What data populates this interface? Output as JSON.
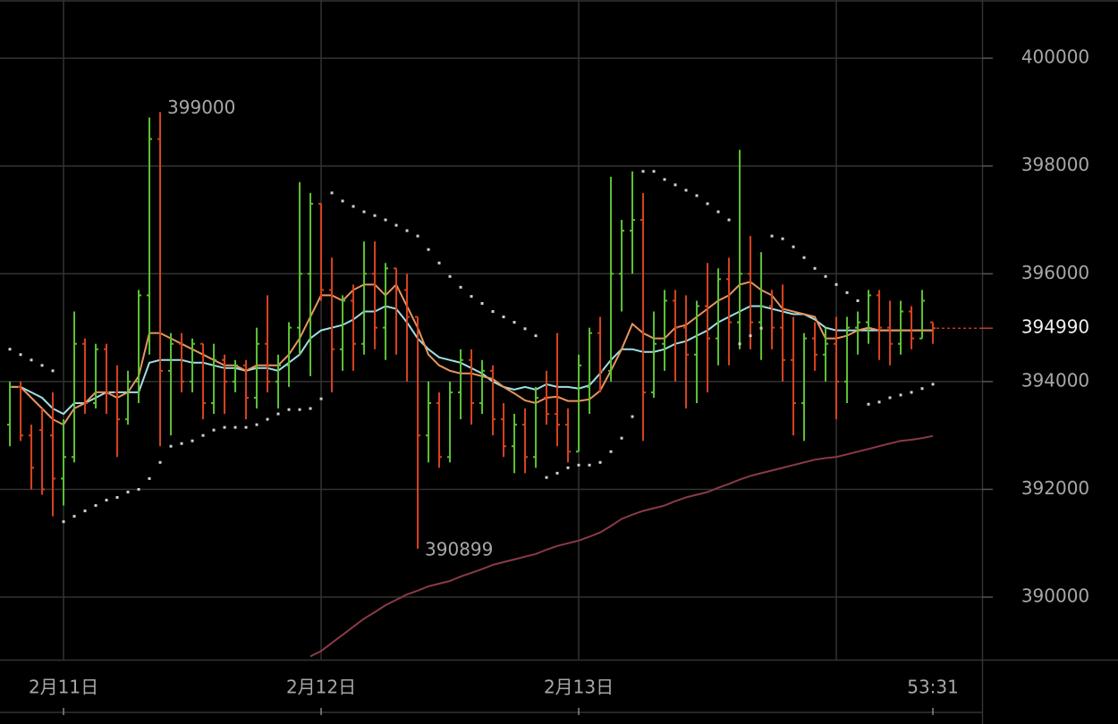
{
  "chart_data": {
    "type": "ohlc",
    "up_color": "#5ec234",
    "down_color": "#d8431f",
    "x": [
      -5,
      -4,
      -3,
      -2,
      -1,
      0,
      1,
      2,
      3,
      4,
      5,
      6,
      7,
      8,
      9,
      10,
      11,
      12,
      13,
      14,
      15,
      16,
      17,
      18,
      19,
      20,
      21,
      22,
      23,
      24,
      25,
      26,
      27,
      28,
      29,
      30,
      31,
      32,
      33,
      34,
      35,
      36,
      37,
      38,
      39,
      40,
      41,
      42,
      43,
      44,
      45,
      46,
      47,
      48,
      49,
      50,
      51,
      52,
      53,
      54,
      55,
      56,
      57,
      58,
      59,
      60,
      61,
      62,
      63,
      64,
      65,
      66,
      67,
      68,
      69,
      70,
      71,
      72,
      73,
      74,
      75,
      76,
      77,
      78,
      79,
      80,
      81
    ],
    "open": [
      393200,
      393900,
      393000,
      393100,
      393000,
      392200,
      392600,
      394700,
      393600,
      394600,
      393800,
      393300,
      394000,
      395600,
      398500,
      394200,
      394700,
      394000,
      394700,
      393600,
      394400,
      394000,
      394300,
      393700,
      394700,
      394000,
      394300,
      395000,
      396000,
      397300,
      395700,
      394600,
      395500,
      394700,
      396000,
      395000,
      396100,
      395700,
      395200,
      393000,
      393600,
      392600,
      393800,
      394400,
      393600,
      394200,
      393300,
      392800,
      393200,
      392600,
      393700,
      393400,
      393200,
      392700,
      393900,
      394900,
      394200,
      396000,
      396800,
      397000,
      393800,
      394700,
      395500,
      395000,
      394500,
      395400,
      394800,
      395900,
      395100,
      396000,
      395100,
      395400,
      395000,
      394400,
      393600,
      394800,
      394500,
      394700,
      394000,
      395000,
      395100,
      395600,
      395000,
      394700,
      395300,
      394800,
      395100
    ],
    "high": [
      394000,
      394000,
      393200,
      393500,
      393800,
      393300,
      395300,
      394800,
      394700,
      394700,
      394300,
      394200,
      395700,
      398900,
      399000,
      394900,
      394900,
      394800,
      394700,
      394700,
      394500,
      394400,
      394400,
      395000,
      395600,
      394500,
      395100,
      397700,
      397500,
      397300,
      396300,
      395600,
      395800,
      396600,
      396600,
      396200,
      396100,
      396000,
      395200,
      394000,
      393800,
      394000,
      394600,
      394600,
      394400,
      394300,
      393600,
      393400,
      393500,
      393900,
      394200,
      394900,
      393500,
      394500,
      395000,
      395200,
      397800,
      397000,
      397900,
      397500,
      395300,
      395700,
      395700,
      395600,
      395500,
      396200,
      396100,
      396300,
      398300,
      396700,
      396400,
      395700,
      395800,
      395200,
      394900,
      395100,
      395000,
      395200,
      395200,
      395300,
      395700,
      395700,
      395500,
      395500,
      395400,
      395700,
      395100
    ],
    "low": [
      392800,
      392900,
      392000,
      391900,
      391500,
      391700,
      392500,
      393400,
      393500,
      393400,
      392600,
      393200,
      393600,
      394500,
      392800,
      393000,
      393800,
      393800,
      393300,
      393400,
      393400,
      393800,
      393300,
      393500,
      393800,
      393500,
      393900,
      394500,
      394100,
      395500,
      393800,
      394200,
      394200,
      394500,
      394600,
      394400,
      394500,
      394000,
      390899,
      392500,
      392400,
      392500,
      393300,
      393200,
      393400,
      393000,
      392600,
      392300,
      392300,
      392400,
      393200,
      392800,
      392500,
      392700,
      393400,
      393800,
      394000,
      395300,
      396000,
      392900,
      393700,
      394200,
      394000,
      393500,
      393600,
      393800,
      394300,
      394300,
      394600,
      394600,
      394400,
      394600,
      394000,
      393000,
      392900,
      394200,
      394000,
      393300,
      393600,
      394500,
      394700,
      394400,
      394300,
      394500,
      394600,
      394800,
      394700
    ],
    "close": [
      393900,
      393000,
      392400,
      392000,
      392200,
      392600,
      394700,
      393600,
      394600,
      393800,
      393300,
      394000,
      395600,
      398500,
      394200,
      394700,
      394000,
      394700,
      393600,
      394400,
      394000,
      394300,
      393700,
      394700,
      394000,
      394300,
      395000,
      396000,
      397300,
      395700,
      394600,
      395500,
      394700,
      396000,
      395000,
      396100,
      395700,
      395200,
      393000,
      393600,
      392600,
      393800,
      394400,
      393600,
      394200,
      393300,
      392800,
      393200,
      392600,
      393700,
      393400,
      393200,
      392700,
      394300,
      394900,
      394200,
      396000,
      396800,
      397000,
      393800,
      394700,
      395500,
      395000,
      394500,
      395400,
      394800,
      395900,
      395100,
      396000,
      395100,
      395400,
      395000,
      394400,
      393600,
      394800,
      394500,
      394700,
      394000,
      395000,
      395100,
      395600,
      395000,
      394700,
      395300,
      394800,
      395500,
      394990
    ],
    "lines": [
      {
        "color": "#8b3a48",
        "values": [
          null,
          null,
          null,
          null,
          null,
          null,
          null,
          null,
          null,
          null,
          null,
          null,
          null,
          null,
          null,
          null,
          null,
          null,
          null,
          null,
          null,
          null,
          null,
          null,
          null,
          null,
          null,
          null,
          388900,
          389000,
          389150,
          389300,
          389450,
          389600,
          389720,
          389850,
          389950,
          390050,
          390120,
          390200,
          390250,
          390300,
          390380,
          390450,
          390520,
          390600,
          390650,
          390700,
          390750,
          390800,
          390880,
          390950,
          391000,
          391050,
          391120,
          391200,
          391320,
          391450,
          391530,
          391600,
          391650,
          391700,
          391780,
          391850,
          391900,
          391950,
          392030,
          392100,
          392180,
          392250,
          392300,
          392350,
          392400,
          392450,
          392500,
          392550,
          392580,
          392600,
          392650,
          392700,
          392750,
          392800,
          392850,
          392900,
          392920,
          392950,
          392990
        ]
      },
      {
        "color": "#9fdfe6",
        "values": [
          393900,
          393900,
          393800,
          393700,
          393500,
          393400,
          393600,
          393600,
          393700,
          393800,
          393800,
          393800,
          393800,
          394350,
          394400,
          394400,
          394400,
          394350,
          394350,
          394300,
          394250,
          394250,
          394200,
          394250,
          394250,
          394200,
          394350,
          394500,
          394800,
          394950,
          395000,
          395050,
          395150,
          395300,
          395300,
          395400,
          395350,
          395100,
          394800,
          394600,
          394450,
          394400,
          394350,
          394250,
          394150,
          394000,
          393900,
          393850,
          393900,
          393850,
          393950,
          393900,
          393900,
          393870,
          393930,
          394150,
          394400,
          394600,
          394600,
          394550,
          394550,
          394600,
          394700,
          394750,
          394850,
          394950,
          395100,
          395200,
          395300,
          395400,
          395400,
          395350,
          395300,
          395250,
          395250,
          395150,
          395000,
          394950,
          394950,
          394950,
          394950,
          394950,
          394950,
          394950,
          394950,
          394950,
          394950
        ]
      },
      {
        "color": "#e8955c",
        "values": [
          393900,
          393900,
          393700,
          393500,
          393300,
          393200,
          393500,
          393600,
          393800,
          393800,
          393700,
          393800,
          394100,
          394900,
          394900,
          394800,
          394700,
          394600,
          394500,
          394400,
          394300,
          394300,
          394200,
          394300,
          394300,
          394300,
          394500,
          394800,
          395200,
          395600,
          395600,
          395500,
          395700,
          395800,
          395800,
          395600,
          395800,
          395400,
          395000,
          394500,
          394300,
          394200,
          394150,
          394150,
          394100,
          394050,
          393900,
          393780,
          393650,
          393600,
          393700,
          393720,
          393640,
          393640,
          393670,
          393830,
          394200,
          394600,
          395070,
          394900,
          394800,
          394800,
          395000,
          395050,
          395200,
          395350,
          395500,
          395600,
          395800,
          395850,
          395700,
          395600,
          395350,
          395300,
          395250,
          395200,
          394800,
          394800,
          394850,
          394950,
          395000,
          394950,
          394950,
          394950,
          394950,
          394950,
          394950
        ]
      }
    ],
    "sar": {
      "color": "#d0d0d0",
      "values": [
        394600,
        394500,
        394400,
        394300,
        394200,
        391400,
        391500,
        391600,
        391700,
        391800,
        391850,
        391950,
        392000,
        392200,
        392500,
        392800,
        392850,
        392900,
        393000,
        393100,
        393150,
        393150,
        393150,
        393200,
        393300,
        393400,
        393480,
        393480,
        393500,
        393680,
        397500,
        397350,
        397250,
        397150,
        397080,
        397000,
        396900,
        396800,
        396700,
        396450,
        396200,
        395950,
        395750,
        395580,
        395450,
        395300,
        395200,
        395100,
        394980,
        394850,
        392220,
        392300,
        392400,
        392450,
        392450,
        392500,
        392700,
        392950,
        393350,
        397900,
        397900,
        397750,
        397650,
        397550,
        397450,
        397300,
        397150,
        397000,
        394700,
        394850,
        394990,
        396700,
        396650,
        396500,
        396300,
        396100,
        395950,
        395800,
        395650,
        395500,
        393580,
        393620,
        393700,
        393750,
        393800,
        393870,
        393950
      ]
    },
    "annotations": [
      {
        "x": 9,
        "value": 399000
      },
      {
        "x": 33,
        "value": 390899
      }
    ],
    "current_price": 394990,
    "current_color": "#c0392b",
    "xlim": [
      -5.92,
      85.58
    ],
    "ylim": [
      388840,
      401080
    ],
    "yticks": [
      390000,
      392000,
      394000,
      396000,
      398000,
      400000
    ],
    "xticks": [
      {
        "value": 0,
        "label": "2月11日"
      },
      {
        "value": 24,
        "label": "2月12日"
      },
      {
        "value": 48,
        "label": "2月13日"
      },
      {
        "value": 81,
        "label": "53:31"
      }
    ],
    "xgrid": [
      0,
      24,
      48,
      72
    ],
    "grid": true
  }
}
